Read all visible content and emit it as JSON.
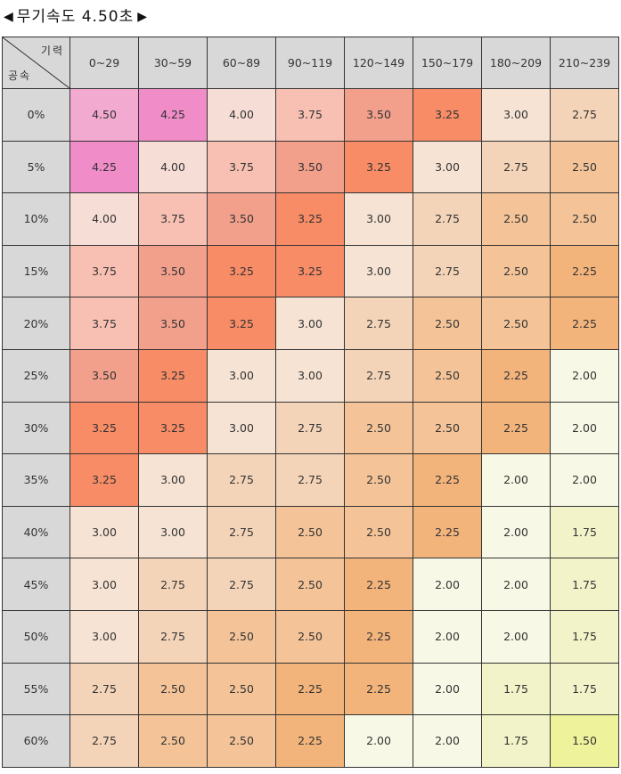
{
  "title": {
    "left_arrow": "◀",
    "text": "무기속도 4.50초",
    "right_arrow": "▶"
  },
  "corner": {
    "top_label": "기력",
    "bottom_label": "공속"
  },
  "columns": [
    "0~29",
    "30~59",
    "60~89",
    "90~119",
    "120~149",
    "150~179",
    "180~209",
    "210~239"
  ],
  "rows": [
    {
      "label": "0%",
      "values": [
        "4.50",
        "4.25",
        "4.00",
        "3.75",
        "3.50",
        "3.25",
        "3.00",
        "2.75"
      ]
    },
    {
      "label": "5%",
      "values": [
        "4.25",
        "4.00",
        "3.75",
        "3.50",
        "3.25",
        "3.00",
        "2.75",
        "2.50"
      ]
    },
    {
      "label": "10%",
      "values": [
        "4.00",
        "3.75",
        "3.50",
        "3.25",
        "3.00",
        "2.75",
        "2.50",
        "2.50"
      ]
    },
    {
      "label": "15%",
      "values": [
        "3.75",
        "3.50",
        "3.25",
        "3.25",
        "3.00",
        "2.75",
        "2.50",
        "2.25"
      ]
    },
    {
      "label": "20%",
      "values": [
        "3.75",
        "3.50",
        "3.25",
        "3.00",
        "2.75",
        "2.50",
        "2.50",
        "2.25"
      ]
    },
    {
      "label": "25%",
      "values": [
        "3.50",
        "3.25",
        "3.00",
        "3.00",
        "2.75",
        "2.50",
        "2.25",
        "2.00"
      ]
    },
    {
      "label": "30%",
      "values": [
        "3.25",
        "3.25",
        "3.00",
        "2.75",
        "2.50",
        "2.50",
        "2.25",
        "2.00"
      ]
    },
    {
      "label": "35%",
      "values": [
        "3.25",
        "3.00",
        "2.75",
        "2.75",
        "2.50",
        "2.25",
        "2.00",
        "2.00"
      ]
    },
    {
      "label": "40%",
      "values": [
        "3.00",
        "3.00",
        "2.75",
        "2.50",
        "2.50",
        "2.25",
        "2.00",
        "1.75"
      ]
    },
    {
      "label": "45%",
      "values": [
        "3.00",
        "2.75",
        "2.75",
        "2.50",
        "2.25",
        "2.00",
        "2.00",
        "1.75"
      ]
    },
    {
      "label": "50%",
      "values": [
        "3.00",
        "2.75",
        "2.50",
        "2.50",
        "2.25",
        "2.00",
        "2.00",
        "1.75"
      ]
    },
    {
      "label": "55%",
      "values": [
        "2.75",
        "2.50",
        "2.50",
        "2.25",
        "2.25",
        "2.00",
        "1.75",
        "1.75"
      ]
    },
    {
      "label": "60%",
      "values": [
        "2.75",
        "2.50",
        "2.50",
        "2.25",
        "2.00",
        "2.00",
        "1.75",
        "1.50"
      ]
    }
  ],
  "value_colors": {
    "4.50": "#f2aad0",
    "4.25": "#f08cc8",
    "4.00": "#f6ddd6",
    "3.75": "#f8c0b2",
    "3.50": "#f2a08c",
    "3.25": "#f78c66",
    "3.00": "#f6e3d3",
    "2.75": "#f4d4b8",
    "2.50": "#f4c498",
    "2.25": "#f3b47c",
    "2.00": "#f8f8e6",
    "1.75": "#f2f3c8",
    "1.50": "#eef29a"
  },
  "header_bg": "#d8d8d8"
}
